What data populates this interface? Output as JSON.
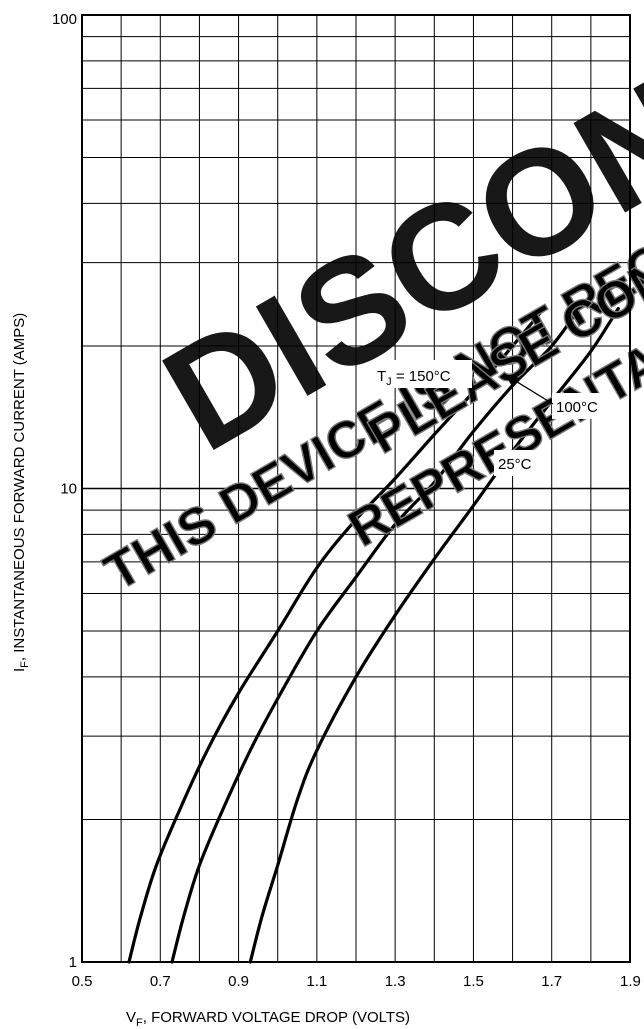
{
  "chart_data": {
    "type": "line",
    "xlabel": {
      "main": "V",
      "sub": "F",
      "rest": ", FORWARD VOLTAGE DROP (VOLTS)"
    },
    "ylabel": {
      "main": "I",
      "sub": "F",
      "rest": ", INSTANTANEOUS FORWARD CURRENT (AMPS)"
    },
    "xlim": [
      0.5,
      1.9
    ],
    "ylim": [
      1,
      100
    ],
    "yscale": "log",
    "grid": true,
    "x_ticks": [
      "0.5",
      "0.7",
      "0.9",
      "1.1",
      "1.3",
      "1.5",
      "1.7",
      "1.9"
    ],
    "y_ticks": [
      "1",
      "10",
      "100"
    ],
    "series": [
      {
        "label_main": "T",
        "label_sub": "J",
        "label_rest": " = 150°C",
        "x": [
          0.62,
          0.65,
          0.69,
          0.75,
          0.82,
          0.9,
          1.0,
          1.1,
          1.2,
          1.3,
          1.4,
          1.5,
          1.6,
          1.68
        ],
        "y": [
          1.0,
          1.25,
          1.6,
          2.1,
          2.8,
          3.7,
          5.0,
          6.8,
          8.6,
          10.5,
          13.0,
          16.0,
          20.0,
          24.0
        ]
      },
      {
        "label": "100°C",
        "x": [
          0.73,
          0.76,
          0.8,
          0.86,
          0.93,
          1.0,
          1.1,
          1.2,
          1.3,
          1.4,
          1.5,
          1.6,
          1.7,
          1.77
        ],
        "y": [
          1.0,
          1.25,
          1.6,
          2.1,
          2.8,
          3.6,
          5.0,
          6.5,
          8.4,
          10.3,
          13.2,
          16.5,
          20.0,
          24.0
        ]
      },
      {
        "label": "25°C",
        "x": [
          0.93,
          0.96,
          1.0,
          1.05,
          1.1,
          1.2,
          1.3,
          1.4,
          1.5,
          1.6,
          1.7,
          1.8,
          1.87
        ],
        "y": [
          1.0,
          1.25,
          1.6,
          2.2,
          2.8,
          4.0,
          5.4,
          7.1,
          9.2,
          12.0,
          15.3,
          19.5,
          24.0
        ]
      }
    ],
    "watermark": {
      "big": "DISCONT",
      "line1": "THIS DEVICE IS NOT RECOM",
      "line2": "PLEASE CONT",
      "line3": "REPRESENTAT"
    }
  }
}
